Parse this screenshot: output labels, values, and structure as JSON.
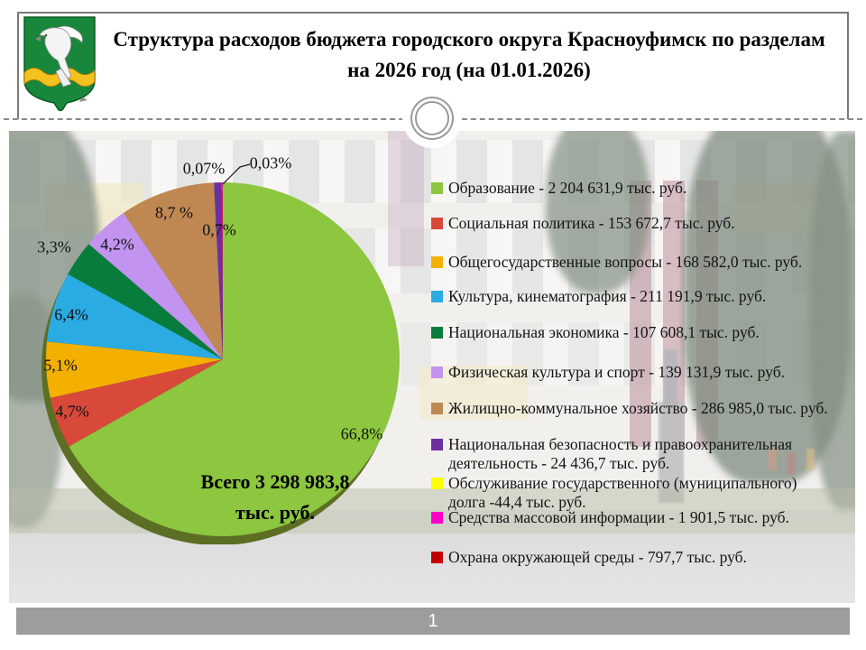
{
  "slide": {
    "title": "Структура расходов бюджета городского округа Красноуфимск по разделам на 2026 год (на 01.01.2026)",
    "page_number": "1",
    "emblem_icon": "krasnoufimsk-coat-of-arms"
  },
  "chart_data": {
    "type": "pie",
    "unit": "тыс. руб.",
    "total": "3 298 983,8",
    "center_lines": [
      "Всего 3 298 983,8",
      "тыс.  руб."
    ],
    "start_angle": "top",
    "direction": "clockwise",
    "legend_position": "right",
    "slices": [
      {
        "name": "Образование",
        "value": "2 204 631,9",
        "percent": 66.8,
        "pie_label": "66,8%",
        "color": "#8dc63f",
        "legend_lines": [
          "Образование - 2 204 631,9 тыс. руб."
        ]
      },
      {
        "name": "Социальная политика",
        "value": "153 672,7",
        "percent": 4.7,
        "pie_label": "4,7%",
        "color": "#d8493a",
        "legend_lines": [
          "Социальная политика - 153 672,7  тыс. руб."
        ]
      },
      {
        "name": "Общегосударственные вопросы",
        "value": "168 582,0",
        "percent": 5.1,
        "pie_label": "5,1%",
        "color": "#f3b000",
        "legend_lines": [
          "Общегосударственные вопросы - 168 582,0 тыс. руб."
        ]
      },
      {
        "name": "Культура, кинематография",
        "value": "211 191,9",
        "percent": 6.4,
        "pie_label": "6,4%",
        "color": "#2aabe2",
        "legend_lines": [
          "Культура, кинематография - 211 191,9 тыс. руб."
        ]
      },
      {
        "name": "Национальная экономика",
        "value": "107 608,1",
        "percent": 3.3,
        "pie_label": "3,3%",
        "color": "#077c3c",
        "legend_lines": [
          "Национальная экономика - 107 608,1 тыс. руб."
        ]
      },
      {
        "name": "Физическая культура и спорт",
        "value": "139 131,9",
        "percent": 4.2,
        "pie_label": "4,2%",
        "color": "#c393f0",
        "legend_lines": [
          "Физическая культура и спорт - 139 131,9 тыс. руб."
        ]
      },
      {
        "name": "Жилищно-коммунальное хозяйство",
        "value": "286 985,0",
        "percent": 8.7,
        "pie_label": "8,7 %",
        "color": "#bf8752",
        "legend_lines": [
          "Жилищно-коммунальное хозяйство - 286 985,0 тыс. руб."
        ]
      },
      {
        "name": "Национальная безопасность и правоохранительная деятельность",
        "value": "24 436,7",
        "percent": 0.7,
        "pie_label": "0,7%",
        "color": "#6c2f9f",
        "legend_lines": [
          "Национальная безопасность и правоохранительная",
          "деятельность - 24 436,7 тыс. руб."
        ]
      },
      {
        "name": "Обслуживание государственного (муниципального) долга",
        "value": "-44,4",
        "percent": 0,
        "pie_label": null,
        "color": "#ffff00",
        "legend_lines": [
          "Обслуживание государственного (муниципального)",
          "долга -44,4 тыс. руб."
        ]
      },
      {
        "name": "Средства массовой информации",
        "value": "1 901,5",
        "percent": 0.07,
        "pie_label": "0,07%",
        "color": "#ff00c8",
        "legend_lines": [
          "Средства массовой информации - 1 901,5 тыс. руб."
        ]
      },
      {
        "name": "Охрана окружающей среды",
        "value": "797,7",
        "percent": 0.03,
        "pie_label": "0,03%",
        "color": "#c00000",
        "legend_lines": [
          "Охрана окружающей среды - 797,7 тыс. руб."
        ]
      }
    ]
  }
}
